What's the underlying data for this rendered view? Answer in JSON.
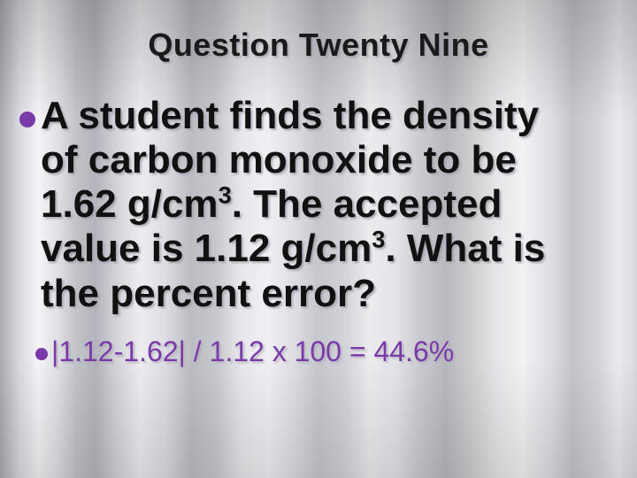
{
  "title": {
    "text": "Question Twenty Nine",
    "fontsize": 36,
    "color": "#1a1a1a"
  },
  "bullet_color": "#7a3aa8",
  "body": {
    "fontsize": 44,
    "color": "#111111",
    "lines": "A student finds the density\nof carbon monoxide to be\n1.62 g/cm³.  The accepted\nvalue is 1.12 g/cm³.  What is\nthe percent error?"
  },
  "answer": {
    "fontsize": 32,
    "color": "#7a3aa8",
    "text": "|1.12-1.62| / 1.12 x 100 = 44.6%"
  },
  "background": {
    "type": "curtain-gradient",
    "base_colors": [
      "#a9a9b0",
      "#f4f4f7",
      "#c2c2c9",
      "#ededf1"
    ]
  }
}
